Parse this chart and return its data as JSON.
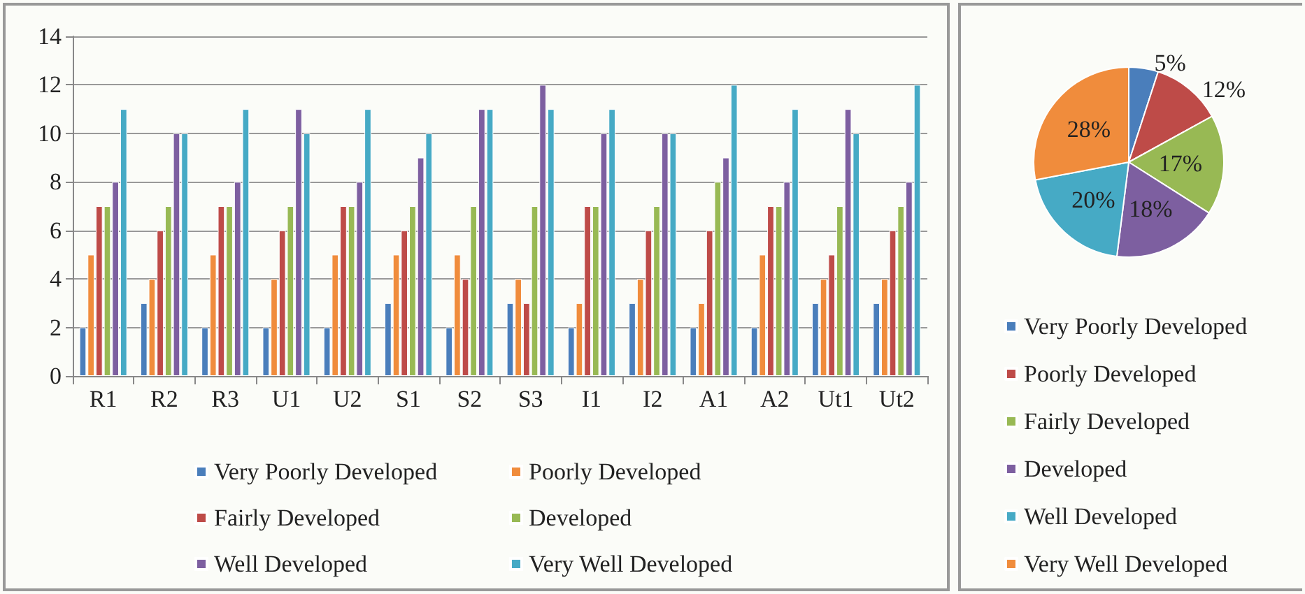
{
  "chart_data": [
    {
      "type": "bar",
      "categories": [
        "R1",
        "R2",
        "R3",
        "U1",
        "U2",
        "S1",
        "S2",
        "S3",
        "I1",
        "I2",
        "A1",
        "A2",
        "Ut1",
        "Ut2"
      ],
      "series": [
        {
          "name": "Very Poorly Developed",
          "color": "#4a7ebb",
          "values": [
            2,
            3,
            2,
            2,
            2,
            3,
            2,
            3,
            2,
            3,
            2,
            2,
            3,
            3
          ]
        },
        {
          "name": "Poorly Developed",
          "color": "#f08c3c",
          "values": [
            5,
            4,
            5,
            4,
            5,
            5,
            5,
            4,
            3,
            4,
            3,
            5,
            4,
            4
          ]
        },
        {
          "name": "Fairly Developed",
          "color": "#be4b48",
          "values": [
            7,
            6,
            7,
            6,
            7,
            6,
            4,
            3,
            7,
            6,
            6,
            7,
            5,
            6
          ]
        },
        {
          "name": "Developed",
          "color": "#98b954",
          "values": [
            7,
            7,
            7,
            7,
            7,
            7,
            7,
            7,
            7,
            7,
            8,
            7,
            7,
            7
          ]
        },
        {
          "name": "Well Developed",
          "color": "#7d5fa0",
          "values": [
            8,
            10,
            8,
            11,
            8,
            9,
            11,
            12,
            10,
            10,
            9,
            8,
            11,
            8
          ]
        },
        {
          "name": "Very Well Developed",
          "color": "#46aac5",
          "values": [
            11,
            10,
            11,
            10,
            11,
            10,
            11,
            11,
            11,
            10,
            12,
            11,
            10,
            12
          ]
        }
      ],
      "ylim": [
        0,
        14
      ],
      "yticks": [
        0,
        2,
        4,
        6,
        8,
        10,
        12,
        14
      ],
      "grid": "y",
      "legend": "bottom"
    },
    {
      "type": "pie",
      "categories": [
        "Very Poorly Developed",
        "Poorly Developed",
        "Fairly Developed",
        "Developed",
        "Well Developed",
        "Very Well Developed"
      ],
      "values": [
        5,
        12,
        17,
        18,
        20,
        28
      ],
      "colors": [
        "#4a7ebb",
        "#be4b48",
        "#98b954",
        "#7d5fa0",
        "#46aac5",
        "#f08c3c"
      ],
      "value_labels": [
        "5%",
        "12%",
        "17%",
        "18%",
        "20%",
        "28%"
      ],
      "legend": "bottom"
    }
  ]
}
